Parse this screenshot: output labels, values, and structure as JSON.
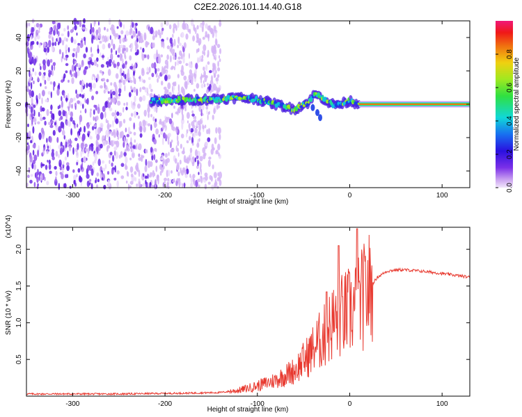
{
  "chart_data": [
    {
      "type": "heatmap",
      "title": "C2E2.2026.101.14.40.G18",
      "xlabel": "Height of straight line (km)",
      "ylabel": "Frequency (Hz)",
      "xlim": [
        -350,
        130
      ],
      "ylim": [
        -50,
        50
      ],
      "x_ticks": [
        -300,
        -200,
        -100,
        0,
        100
      ],
      "y_ticks": [
        -40,
        -20,
        0,
        20,
        40
      ],
      "colorbar": {
        "label": "Normalized spectral amplitude",
        "range": [
          0.0,
          1.0
        ],
        "ticks": [
          0.0,
          0.2,
          0.4,
          0.6,
          0.8
        ]
      },
      "features": [
        {
          "name": "noise region",
          "x_range": [
            -350,
            -140
          ],
          "amplitude": "low"
        },
        {
          "name": "signal track",
          "x": [
            -215,
            -150,
            -120,
            -100,
            -80,
            -60,
            -45,
            -38,
            -30,
            -20,
            -10,
            0,
            10,
            130
          ],
          "y": [
            2,
            3,
            4,
            3,
            0,
            -3,
            1,
            6,
            4,
            0,
            0,
            2,
            0,
            0
          ]
        },
        {
          "name": "secondary branch",
          "x": [
            -40,
            -35,
            -32
          ],
          "y": [
            -2,
            -5,
            -8
          ]
        }
      ]
    },
    {
      "type": "line",
      "title": "",
      "xlabel": "Height of straight line (km)",
      "ylabel": "SNR (10 * v/v)",
      "y_multiplier": "(x10^4)",
      "xlim": [
        -350,
        130
      ],
      "ylim": [
        0,
        2.3
      ],
      "x_ticks": [
        -300,
        -200,
        -100,
        0,
        100
      ],
      "y_ticks": [
        0.5,
        1.0,
        1.5,
        2.0
      ],
      "color": "#e8392f",
      "series": [
        {
          "name": "SNR",
          "x": [
            -350,
            -250,
            -180,
            -140,
            -120,
            -100,
            -80,
            -60,
            -45,
            -35,
            -25,
            -20,
            -10,
            0,
            10,
            20,
            30,
            40,
            50,
            60,
            80,
            100,
            130
          ],
          "y": [
            0.03,
            0.03,
            0.04,
            0.05,
            0.08,
            0.14,
            0.22,
            0.35,
            0.55,
            0.72,
            0.85,
            0.98,
            1.08,
            1.15,
            1.25,
            1.45,
            1.62,
            1.7,
            1.72,
            1.72,
            1.7,
            1.67,
            1.62
          ]
        },
        {
          "name": "SNR peaks",
          "x": [
            -25,
            -12,
            8
          ],
          "y": [
            1.42,
            2.05,
            2.28
          ]
        }
      ]
    }
  ]
}
